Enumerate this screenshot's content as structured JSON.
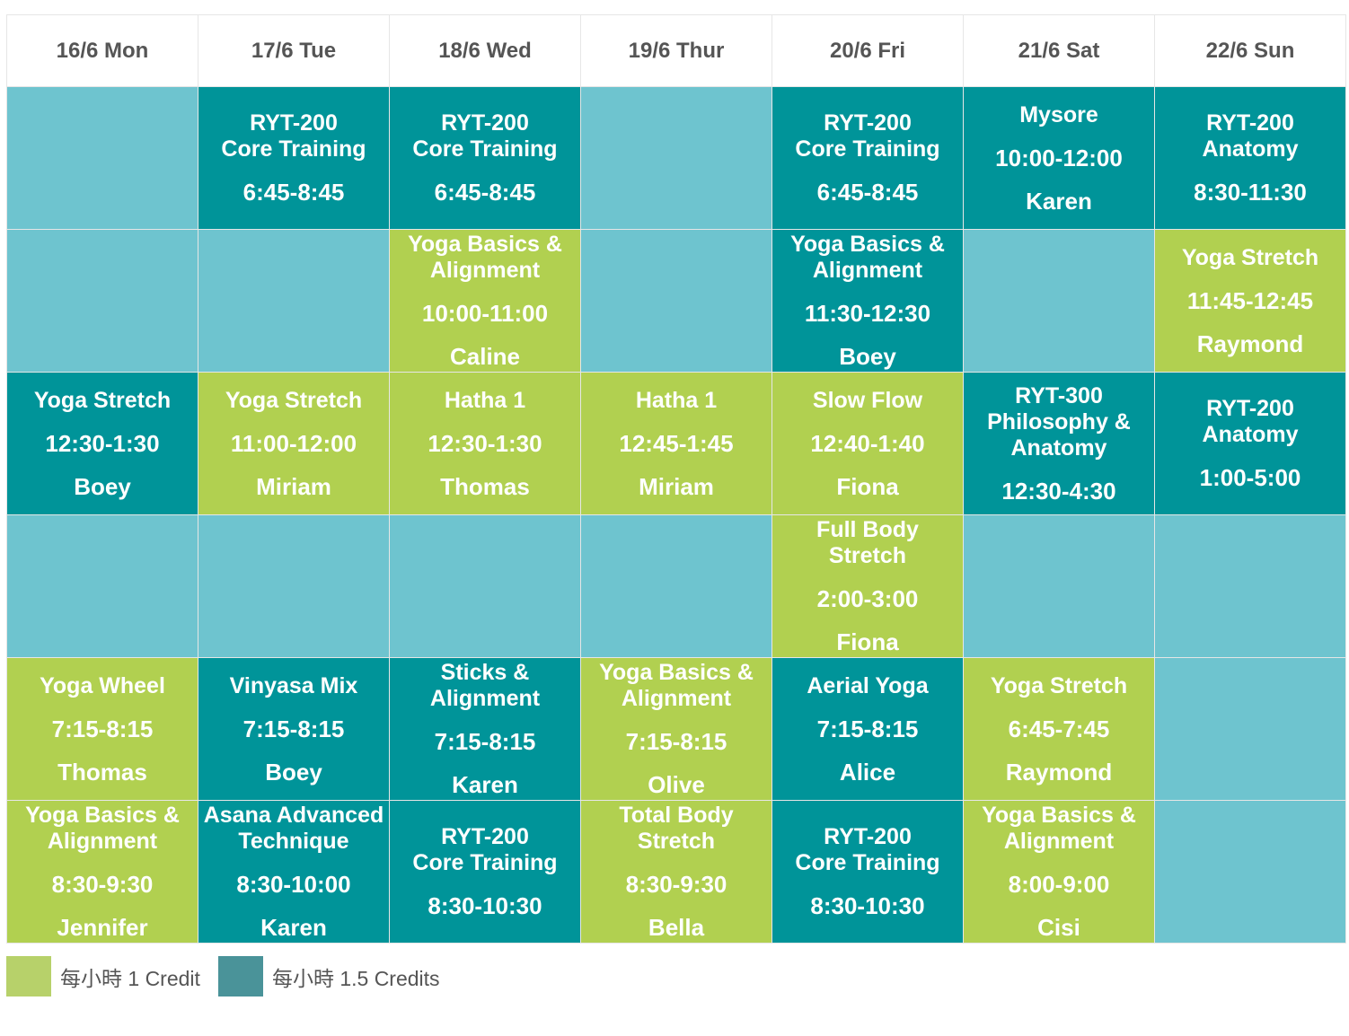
{
  "colors": {
    "one_credit": "#b1d050",
    "one_half_credit": "#009499",
    "empty": "#6ec4cf",
    "header_text": "#555555"
  },
  "days": [
    "16/6 Mon",
    "17/6 Tue",
    "18/6 Wed",
    "19/6 Thur",
    "20/6 Fri",
    "21/6 Sat",
    "22/6 Sun"
  ],
  "rows": [
    [
      {
        "type": "empty"
      },
      {
        "type": "c15",
        "title": "RYT-200\nCore Training",
        "time": "6:45-8:45"
      },
      {
        "type": "c15",
        "title": "RYT-200\nCore Training",
        "time": "6:45-8:45"
      },
      {
        "type": "empty"
      },
      {
        "type": "c15",
        "title": "RYT-200\nCore Training",
        "time": "6:45-8:45"
      },
      {
        "type": "c15",
        "title": "Mysore",
        "time": "10:00-12:00",
        "teacher": "Karen"
      },
      {
        "type": "c15",
        "title": "RYT-200\nAnatomy",
        "time": "8:30-11:30"
      }
    ],
    [
      {
        "type": "empty"
      },
      {
        "type": "empty"
      },
      {
        "type": "c1",
        "title": "Yoga Basics &\nAlignment",
        "time": "10:00-11:00",
        "teacher": "Caline"
      },
      {
        "type": "empty"
      },
      {
        "type": "c15",
        "title": "Yoga Basics &\nAlignment",
        "time": "11:30-12:30",
        "teacher": "Boey"
      },
      {
        "type": "empty"
      },
      {
        "type": "c1",
        "title": "Yoga Stretch",
        "time": "11:45-12:45",
        "teacher": "Raymond"
      }
    ],
    [
      {
        "type": "c15",
        "title": "Yoga Stretch",
        "time": "12:30-1:30",
        "teacher": "Boey"
      },
      {
        "type": "c1",
        "title": "Yoga Stretch",
        "time": "11:00-12:00",
        "teacher": "Miriam"
      },
      {
        "type": "c1",
        "title": "Hatha 1",
        "time": "12:30-1:30",
        "teacher": "Thomas"
      },
      {
        "type": "c1",
        "title": "Hatha 1",
        "time": "12:45-1:45",
        "teacher": "Miriam"
      },
      {
        "type": "c1",
        "title": "Slow Flow",
        "time": "12:40-1:40",
        "teacher": "Fiona"
      },
      {
        "type": "c15",
        "title": "RYT-300\nPhilosophy &\nAnatomy",
        "time": "12:30-4:30"
      },
      {
        "type": "c15",
        "title": "RYT-200\nAnatomy",
        "time": "1:00-5:00"
      }
    ],
    [
      {
        "type": "empty"
      },
      {
        "type": "empty"
      },
      {
        "type": "empty"
      },
      {
        "type": "empty"
      },
      {
        "type": "c1",
        "title": "Full Body\nStretch",
        "time": "2:00-3:00",
        "teacher": "Fiona"
      },
      {
        "type": "empty"
      },
      {
        "type": "empty"
      }
    ],
    [
      {
        "type": "c1",
        "title": "Yoga Wheel",
        "time": "7:15-8:15",
        "teacher": "Thomas"
      },
      {
        "type": "c15",
        "title": "Vinyasa Mix",
        "time": "7:15-8:15",
        "teacher": "Boey"
      },
      {
        "type": "c15",
        "title": "Sticks &\nAlignment",
        "time": "7:15-8:15",
        "teacher": "Karen"
      },
      {
        "type": "c1",
        "title": "Yoga Basics &\nAlignment",
        "time": "7:15-8:15",
        "teacher": "Olive"
      },
      {
        "type": "c15",
        "title": "Aerial Yoga",
        "time": "7:15-8:15",
        "teacher": "Alice"
      },
      {
        "type": "c1",
        "title": "Yoga Stretch",
        "time": "6:45-7:45",
        "teacher": "Raymond"
      },
      {
        "type": "empty"
      }
    ],
    [
      {
        "type": "c1",
        "title": "Yoga Basics &\nAlignment",
        "time": "8:30-9:30",
        "teacher": "Jennifer"
      },
      {
        "type": "c15",
        "title": "Asana Advanced\nTechnique",
        "time": "8:30-10:00",
        "teacher": "Karen"
      },
      {
        "type": "c15",
        "title": "RYT-200\nCore Training",
        "time": "8:30-10:30"
      },
      {
        "type": "c1",
        "title": "Total Body\nStretch",
        "time": "8:30-9:30",
        "teacher": "Bella"
      },
      {
        "type": "c15",
        "title": "RYT-200\nCore Training",
        "time": "8:30-10:30"
      },
      {
        "type": "c1",
        "title": "Yoga Basics &\nAlignment",
        "time": "8:00-9:00",
        "teacher": "Cisi"
      },
      {
        "type": "empty"
      }
    ]
  ],
  "legend": [
    {
      "label": "每小時 1 Credit",
      "color": "#b7d16a"
    },
    {
      "label": "每小時 1.5 Credits",
      "color": "#4a9399"
    }
  ]
}
